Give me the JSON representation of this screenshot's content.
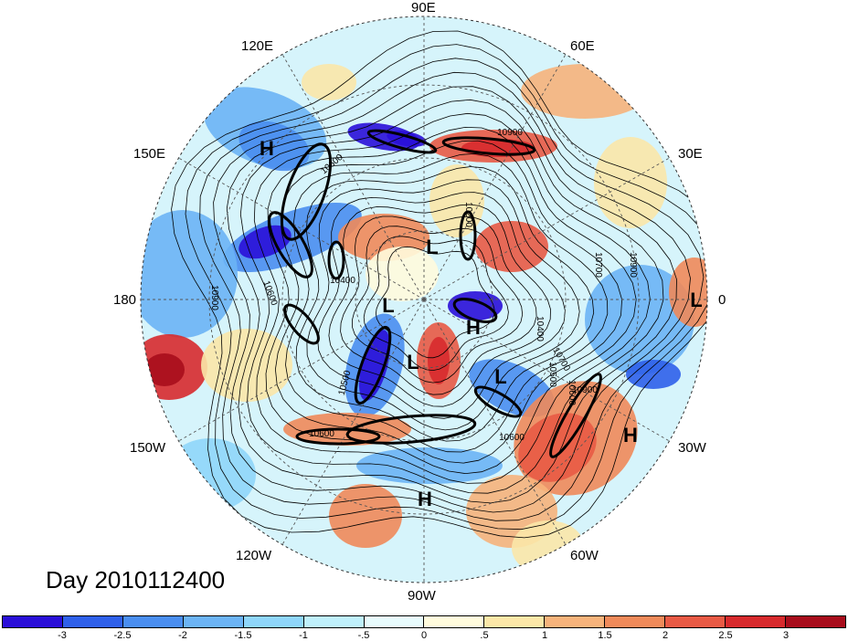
{
  "title": "Day 2010112400",
  "longitude_labels": [
    {
      "text": "90E",
      "pos": "top"
    },
    {
      "text": "120E",
      "pos": "upper-left"
    },
    {
      "text": "60E",
      "pos": "upper-right"
    },
    {
      "text": "150E",
      "pos": "left-upper"
    },
    {
      "text": "30E",
      "pos": "right-upper"
    },
    {
      "text": "180",
      "pos": "left"
    },
    {
      "text": "0",
      "pos": "right"
    },
    {
      "text": "150W",
      "pos": "left-lower"
    },
    {
      "text": "30W",
      "pos": "right-lower"
    },
    {
      "text": "120W",
      "pos": "lower-left"
    },
    {
      "text": "60W",
      "pos": "lower-right"
    },
    {
      "text": "90W",
      "pos": "bottom"
    }
  ],
  "pressure_centers": [
    {
      "label": "H",
      "region": "east-asia-north-pacific"
    },
    {
      "label": "L",
      "region": "central-siberia"
    },
    {
      "label": "L",
      "region": "arctic-pacific-side"
    },
    {
      "label": "H",
      "region": "greenland"
    },
    {
      "label": "L",
      "region": "hudson-bay"
    },
    {
      "label": "L",
      "region": "north-atlantic"
    },
    {
      "label": "L",
      "region": "west-africa"
    },
    {
      "label": "H",
      "region": "central-atlantic"
    },
    {
      "label": "H",
      "region": "central-america"
    }
  ],
  "contour_labels": [
    "10900",
    "10600",
    "10400",
    "10500",
    "10600",
    "10200",
    "10700",
    "10900",
    "10400",
    "10500",
    "10700",
    "10600",
    "10600",
    "10600",
    "10900",
    "10900"
  ],
  "colorbar": {
    "colors": [
      "#2a0fd8",
      "#2f60ea",
      "#4a8ef0",
      "#6cb4f5",
      "#8fd6fa",
      "#bff0fb",
      "#e8fbfd",
      "#fffbdd",
      "#fbe7a8",
      "#f6b37b",
      "#ef8a5a",
      "#e85a45",
      "#d72a2d",
      "#a80d1c"
    ],
    "ticks": [
      "-3",
      "-2.5",
      "-2",
      "-1.5",
      "-1",
      "-.5",
      "0",
      ".5",
      "1",
      "1.5",
      "2",
      "2.5",
      "3"
    ]
  }
}
